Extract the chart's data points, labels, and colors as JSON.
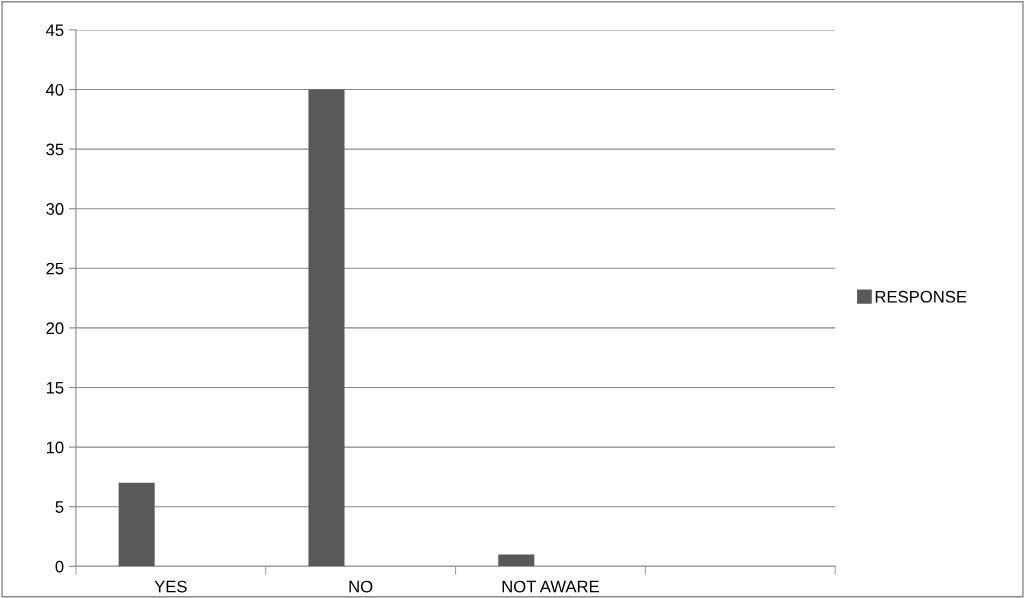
{
  "chart_data": {
    "type": "bar",
    "categories": [
      "YES",
      "NO",
      "NOT AWARE",
      null
    ],
    "series": [
      {
        "name": "RESPONSE",
        "color": "#595959",
        "values": [
          7,
          40,
          1,
          null
        ]
      }
    ],
    "ylim": [
      0,
      45
    ],
    "yticks": [
      0,
      5,
      10,
      15,
      20,
      25,
      30,
      35,
      40,
      45
    ],
    "grid": "y",
    "legend": "right"
  }
}
